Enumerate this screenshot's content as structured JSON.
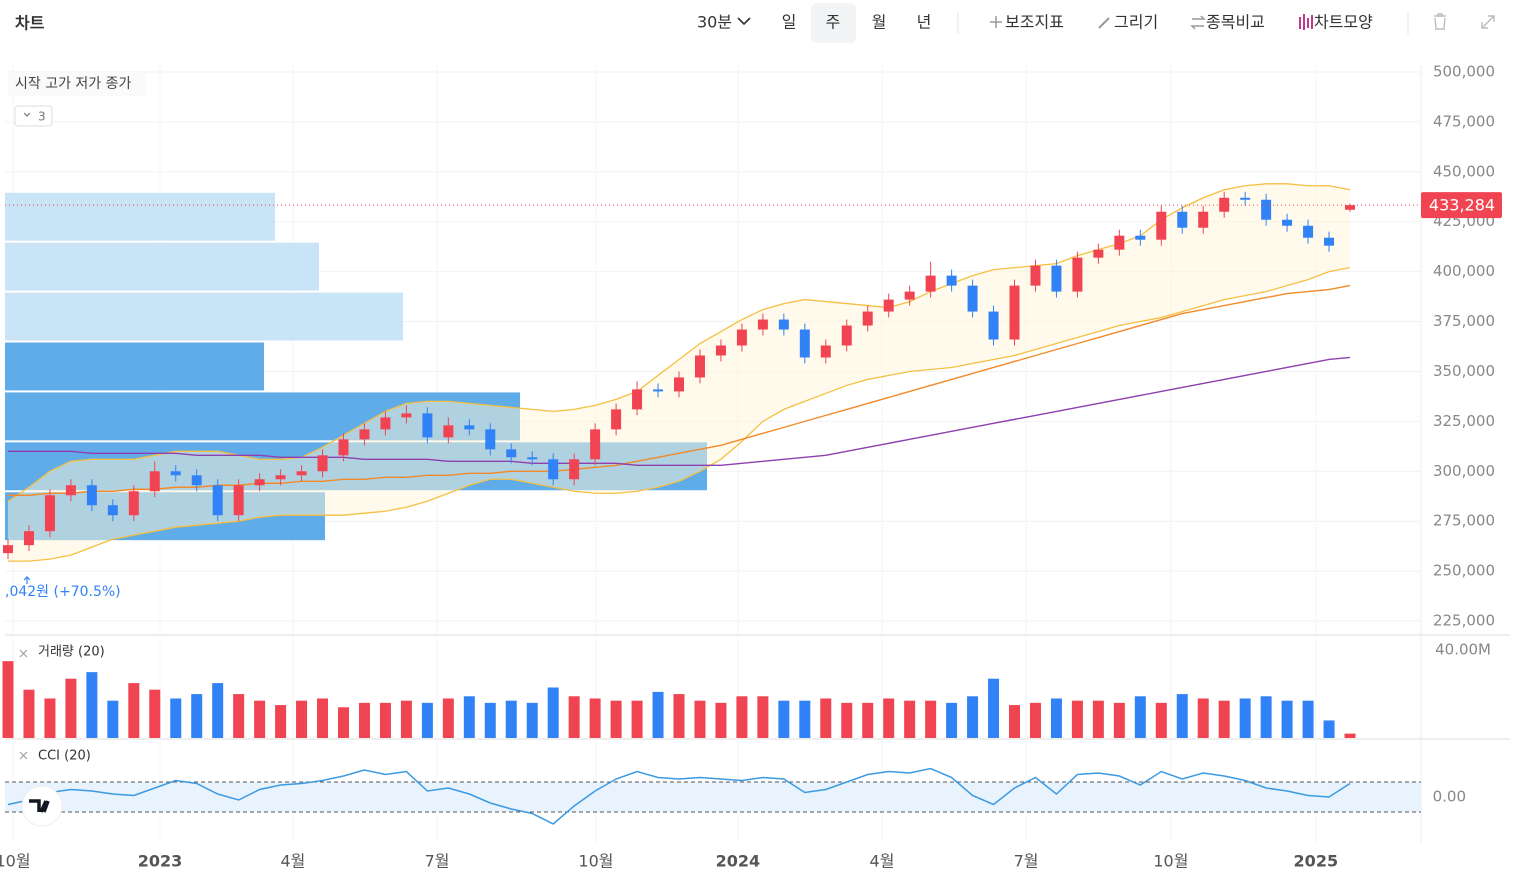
{
  "toolbar": {
    "title": "차트",
    "interval": "30분",
    "periods": [
      "일",
      "주",
      "월",
      "년"
    ],
    "tools": [
      "보조지표",
      "그리기",
      "종목비교",
      "차트모양"
    ]
  },
  "chart_data": [
    {
      "type": "candlestick",
      "legend": "시작 고가 저가 종가",
      "collapsed_count": "3",
      "annotation": ",042원  (+70.5%)",
      "up_color": "#f04452",
      "down_color": "#3182f6",
      "open": [
        259000,
        263000,
        270000,
        288000,
        293000,
        283000,
        278000,
        290000,
        300000,
        298000,
        293000,
        278000,
        293000,
        296000,
        298000,
        300000,
        308000,
        316000,
        321000,
        327000,
        329000,
        317000,
        323000,
        321000,
        311000,
        307000,
        306000,
        296000,
        306000,
        321000,
        331000,
        341000,
        340000,
        347000,
        358000,
        363000,
        371000,
        376000,
        371000,
        357000,
        363000,
        373000,
        380000,
        386000,
        390000,
        398000,
        393000,
        380000,
        366000,
        393000,
        403000,
        390000,
        407000,
        411000,
        418000,
        416000,
        430000,
        422000,
        430000,
        437000,
        436000,
        426000,
        423000,
        417000,
        431000
      ],
      "high": [
        266000,
        273000,
        291000,
        296000,
        296000,
        286000,
        293000,
        305000,
        303000,
        301000,
        296000,
        296000,
        299000,
        301000,
        303000,
        311000,
        319000,
        324000,
        330000,
        333000,
        332000,
        327000,
        326000,
        324000,
        314000,
        310000,
        309000,
        309000,
        324000,
        334000,
        345000,
        344000,
        350000,
        361000,
        366000,
        374000,
        379000,
        379000,
        374000,
        366000,
        376000,
        383000,
        389000,
        393000,
        405000,
        401000,
        396000,
        383000,
        396000,
        406000,
        406000,
        410000,
        414000,
        421000,
        421000,
        433000,
        433000,
        433000,
        440000,
        440000,
        439000,
        429000,
        426000,
        420000,
        434000
      ],
      "low": [
        256000,
        260000,
        267000,
        285000,
        280000,
        275000,
        275000,
        287000,
        295000,
        290000,
        275000,
        275000,
        290000,
        293000,
        295000,
        297000,
        305000,
        313000,
        318000,
        324000,
        314000,
        314000,
        318000,
        308000,
        304000,
        303000,
        293000,
        293000,
        303000,
        318000,
        328000,
        337000,
        337000,
        344000,
        355000,
        360000,
        368000,
        368000,
        354000,
        354000,
        360000,
        370000,
        377000,
        383000,
        387000,
        390000,
        377000,
        363000,
        363000,
        390000,
        387000,
        387000,
        404000,
        408000,
        413000,
        413000,
        419000,
        419000,
        427000,
        433000,
        423000,
        420000,
        414000,
        410000,
        430000
      ],
      "close": [
        263000,
        270000,
        288000,
        293000,
        283000,
        278000,
        290000,
        300000,
        298000,
        293000,
        278000,
        293000,
        296000,
        298000,
        300000,
        308000,
        316000,
        321000,
        327000,
        329000,
        317000,
        323000,
        321000,
        311000,
        307000,
        306000,
        296000,
        306000,
        321000,
        331000,
        341000,
        340000,
        347000,
        358000,
        363000,
        371000,
        376000,
        371000,
        357000,
        363000,
        373000,
        380000,
        386000,
        390000,
        398000,
        393000,
        380000,
        366000,
        393000,
        403000,
        390000,
        407000,
        411000,
        418000,
        416000,
        430000,
        422000,
        430000,
        437000,
        436000,
        426000,
        423000,
        417000,
        413000,
        433284
      ],
      "band": {
        "color": "#f5bf42",
        "upper": [
          285000,
          292000,
          300000,
          305000,
          306000,
          306000,
          306000,
          308000,
          310000,
          310000,
          310000,
          308000,
          306000,
          306000,
          307000,
          312000,
          318000,
          324000,
          330000,
          334000,
          335000,
          335000,
          334000,
          333000,
          332000,
          331000,
          330000,
          331000,
          333000,
          336000,
          340000,
          348000,
          356000,
          364000,
          370000,
          376000,
          381000,
          384000,
          386000,
          385000,
          384000,
          383000,
          382000,
          385000,
          390000,
          394000,
          398000,
          401000,
          402000,
          403000,
          404000,
          408000,
          411000,
          414000,
          418000,
          426000,
          432000,
          437000,
          441000,
          443000,
          444000,
          444000,
          443000,
          443000,
          441000
        ],
        "lower": [
          255000,
          255000,
          256000,
          258000,
          262000,
          266000,
          268000,
          270000,
          272000,
          273000,
          274000,
          275000,
          277000,
          278000,
          278000,
          278000,
          278000,
          279000,
          280000,
          282000,
          285000,
          289000,
          293000,
          296000,
          296000,
          294000,
          292000,
          290000,
          289000,
          289000,
          290000,
          292000,
          295000,
          300000,
          306000,
          315000,
          325000,
          331000,
          335000,
          339000,
          343000,
          346000,
          348000,
          350000,
          351000,
          352000,
          354000,
          356000,
          358000,
          361000,
          364000,
          367000,
          370000,
          373000,
          375000,
          377000,
          380000,
          383000,
          386000,
          388000,
          390000,
          393000,
          396000,
          400000,
          402000
        ]
      },
      "lines": [
        {
          "color": "#f28a2a",
          "values": [
            288000,
            288000,
            289000,
            289000,
            290000,
            290000,
            291000,
            291000,
            292000,
            292000,
            293000,
            293000,
            294000,
            294000,
            295000,
            295000,
            296000,
            296000,
            297000,
            297000,
            298000,
            298000,
            299000,
            299000,
            300000,
            300000,
            300000,
            301000,
            302000,
            303000,
            305000,
            307000,
            309000,
            311000,
            313000,
            316000,
            319000,
            322000,
            325000,
            328000,
            331000,
            334000,
            337000,
            340000,
            343000,
            346000,
            349000,
            352000,
            355000,
            358000,
            361000,
            364000,
            367000,
            370000,
            373000,
            376000,
            379000,
            381000,
            383000,
            385000,
            387000,
            389000,
            390000,
            391000,
            393000
          ]
        },
        {
          "color": "#8e3fb0",
          "values": [
            310000,
            310000,
            310000,
            310000,
            309000,
            309000,
            309000,
            309000,
            309000,
            308000,
            308000,
            308000,
            308000,
            307000,
            307000,
            307000,
            307000,
            306000,
            306000,
            306000,
            306000,
            305000,
            305000,
            305000,
            305000,
            304000,
            304000,
            304000,
            304000,
            304000,
            303000,
            303000,
            303000,
            303000,
            303000,
            304000,
            305000,
            306000,
            307000,
            308000,
            310000,
            312000,
            314000,
            316000,
            318000,
            320000,
            322000,
            324000,
            326000,
            328000,
            330000,
            332000,
            334000,
            336000,
            338000,
            340000,
            342000,
            344000,
            346000,
            348000,
            350000,
            352000,
            354000,
            356000,
            357000
          ]
        }
      ],
      "volume_profile": {
        "bins": [
          440000,
          415000,
          390000,
          365000,
          340000,
          315000,
          290000,
          265000
        ],
        "values": [
          270,
          314,
          398,
          259,
          515,
          702,
          320
        ],
        "colors": [
          "#c6e2f7",
          "#c6e2f7",
          "#c6e2f7",
          "#57a8e8",
          "#57a8e8",
          "#57a8e8",
          "#57a8e8"
        ]
      },
      "last_price": {
        "value": 433284,
        "label": "433,284"
      },
      "ylim": [
        219500,
        503500
      ],
      "yticks": [
        {
          "value": 225000,
          "label": "225,000"
        },
        {
          "value": 250000,
          "label": "250,000"
        },
        {
          "value": 275000,
          "label": "275,000"
        },
        {
          "value": 300000,
          "label": "300,000"
        },
        {
          "value": 325000,
          "label": "325,000"
        },
        {
          "value": 350000,
          "label": "350,000"
        },
        {
          "value": 375000,
          "label": "375,000"
        },
        {
          "value": 400000,
          "label": "400,000"
        },
        {
          "value": 425000,
          "label": "425,000"
        },
        {
          "value": 450000,
          "label": "450,000"
        },
        {
          "value": 475000,
          "label": "475,000"
        },
        {
          "value": 500000,
          "label": "500,000"
        }
      ],
      "xticks": [
        {
          "value": 0.24,
          "label": "10월"
        },
        {
          "value": 7.25,
          "label": "2023"
        },
        {
          "value": 13.59,
          "label": "4월"
        },
        {
          "value": 20.46,
          "label": "7월"
        },
        {
          "value": 28.04,
          "label": "10월"
        },
        {
          "value": 34.81,
          "label": "2024"
        },
        {
          "value": 41.68,
          "label": "4월"
        },
        {
          "value": 48.55,
          "label": "7월"
        },
        {
          "value": 55.46,
          "label": "10월"
        },
        {
          "value": 62.37,
          "label": "2025"
        }
      ]
    },
    {
      "type": "bar",
      "title": "거래량 (20)",
      "values": [
        35,
        22,
        18,
        27,
        30,
        17,
        25,
        22,
        18,
        20,
        25,
        20,
        17,
        15,
        17,
        18,
        14,
        16,
        16,
        17,
        16,
        18,
        19,
        16,
        17,
        16,
        23,
        19,
        18,
        17,
        17,
        21,
        20,
        17,
        16,
        19,
        19,
        17,
        17,
        18,
        16,
        16,
        18,
        17,
        17,
        16,
        19,
        27,
        15,
        16,
        18,
        17,
        17,
        16,
        19,
        16,
        20,
        18,
        17,
        18,
        19,
        17,
        17,
        8,
        2
      ],
      "ylim": [
        0,
        46
      ],
      "yticks": [
        {
          "value": 40,
          "label": "40.00M"
        }
      ]
    },
    {
      "type": "line",
      "title": "CCI (20)",
      "color": "#3b9ae1",
      "values": [
        -50,
        -20,
        30,
        50,
        40,
        20,
        10,
        60,
        110,
        90,
        20,
        -20,
        50,
        80,
        90,
        110,
        140,
        180,
        150,
        170,
        40,
        60,
        20,
        -40,
        -80,
        -110,
        -180,
        -60,
        40,
        120,
        170,
        130,
        120,
        130,
        120,
        110,
        130,
        120,
        30,
        50,
        100,
        150,
        170,
        160,
        190,
        130,
        10,
        -50,
        60,
        130,
        20,
        150,
        160,
        140,
        80,
        170,
        120,
        160,
        140,
        110,
        60,
        40,
        10,
        0,
        90
      ],
      "reference_lines": [
        -100,
        100
      ],
      "ylim": [
        -307,
        367
      ],
      "yticks": [
        {
          "value": 0,
          "label": "0.00"
        }
      ]
    }
  ]
}
